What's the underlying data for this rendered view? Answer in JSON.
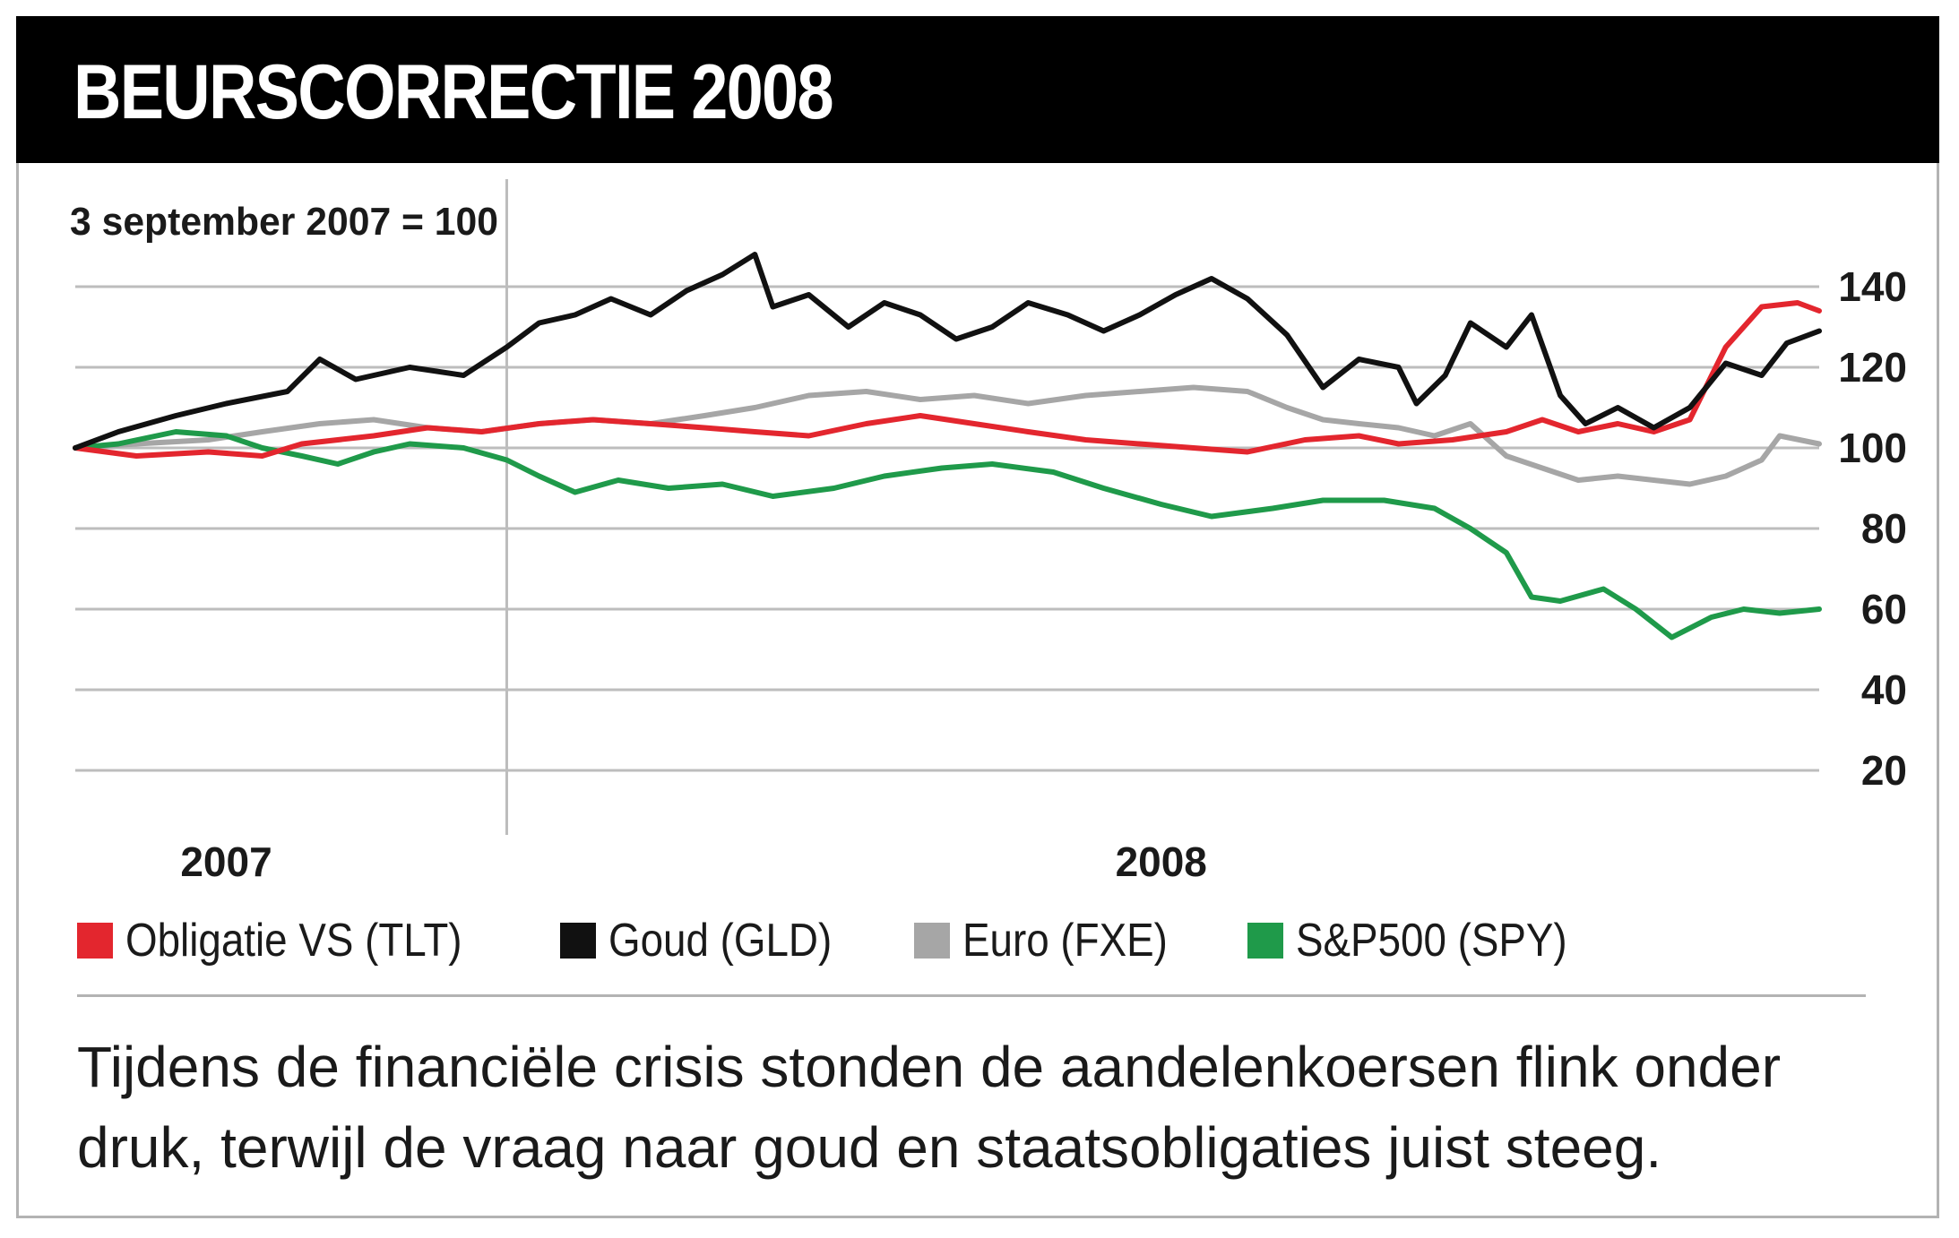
{
  "header": {
    "title": "BEURSCORRECTIE 2008"
  },
  "caption": "Tijdens de financiële crisis stonden de aandelenkoersen flink onder druk, terwijl de vraag naar goud en staatsobligaties juist steeg.",
  "colors": {
    "tlt": "#e3262e",
    "gld": "#111111",
    "fxe": "#a6a6a6",
    "spy": "#1f9a4a",
    "grid": "#bdbdbd"
  },
  "chart_data": {
    "type": "line",
    "index_note": "3 september 2007 = 100",
    "xlim": [
      "2007-09-03",
      "2008-12-31"
    ],
    "ylim": [
      20,
      140
    ],
    "y_ticks": [
      20,
      40,
      60,
      80,
      100,
      120,
      140
    ],
    "y_tick_labels": [
      "20",
      "40",
      "60",
      "80",
      "100",
      "120",
      "140"
    ],
    "year_labels": [
      {
        "label": "2007",
        "x": "2007-10-15"
      },
      {
        "label": "2008",
        "x": "2008-07-01"
      }
    ],
    "year_divider": "2008-01-01",
    "grid": true,
    "legend_position": "bottom",
    "series": [
      {
        "name": "Obligatie VS (TLT)",
        "color_key": "tlt",
        "points": [
          [
            "2007-09-03",
            100
          ],
          [
            "2007-09-20",
            98
          ],
          [
            "2007-10-10",
            99
          ],
          [
            "2007-10-25",
            98
          ],
          [
            "2007-11-05",
            101
          ],
          [
            "2007-11-25",
            103
          ],
          [
            "2007-12-10",
            105
          ],
          [
            "2007-12-25",
            104
          ],
          [
            "2008-01-10",
            106
          ],
          [
            "2008-01-25",
            107
          ],
          [
            "2008-02-10",
            106
          ],
          [
            "2008-02-25",
            105
          ],
          [
            "2008-03-10",
            104
          ],
          [
            "2008-03-25",
            103
          ],
          [
            "2008-04-10",
            106
          ],
          [
            "2008-04-25",
            108
          ],
          [
            "2008-05-10",
            106
          ],
          [
            "2008-05-25",
            104
          ],
          [
            "2008-06-10",
            102
          ],
          [
            "2008-06-25",
            101
          ],
          [
            "2008-07-10",
            100
          ],
          [
            "2008-07-25",
            99
          ],
          [
            "2008-08-10",
            102
          ],
          [
            "2008-08-25",
            103
          ],
          [
            "2008-09-05",
            101
          ],
          [
            "2008-09-20",
            102
          ],
          [
            "2008-10-05",
            104
          ],
          [
            "2008-10-15",
            107
          ],
          [
            "2008-10-25",
            104
          ],
          [
            "2008-11-05",
            106
          ],
          [
            "2008-11-15",
            104
          ],
          [
            "2008-11-25",
            107
          ],
          [
            "2008-12-05",
            125
          ],
          [
            "2008-12-15",
            135
          ],
          [
            "2008-12-25",
            136
          ],
          [
            "2008-12-31",
            134
          ]
        ]
      },
      {
        "name": "Goud (GLD)",
        "color_key": "gld",
        "points": [
          [
            "2007-09-03",
            100
          ],
          [
            "2007-09-15",
            104
          ],
          [
            "2007-10-01",
            108
          ],
          [
            "2007-10-15",
            111
          ],
          [
            "2007-11-01",
            114
          ],
          [
            "2007-11-10",
            122
          ],
          [
            "2007-11-20",
            117
          ],
          [
            "2007-12-05",
            120
          ],
          [
            "2007-12-20",
            118
          ],
          [
            "2008-01-01",
            125
          ],
          [
            "2008-01-10",
            131
          ],
          [
            "2008-01-20",
            133
          ],
          [
            "2008-01-30",
            137
          ],
          [
            "2008-02-10",
            133
          ],
          [
            "2008-02-20",
            139
          ],
          [
            "2008-03-01",
            143
          ],
          [
            "2008-03-10",
            148
          ],
          [
            "2008-03-15",
            135
          ],
          [
            "2008-03-25",
            138
          ],
          [
            "2008-04-05",
            130
          ],
          [
            "2008-04-15",
            136
          ],
          [
            "2008-04-25",
            133
          ],
          [
            "2008-05-05",
            127
          ],
          [
            "2008-05-15",
            130
          ],
          [
            "2008-05-25",
            136
          ],
          [
            "2008-06-05",
            133
          ],
          [
            "2008-06-15",
            129
          ],
          [
            "2008-06-25",
            133
          ],
          [
            "2008-07-05",
            138
          ],
          [
            "2008-07-15",
            142
          ],
          [
            "2008-07-25",
            137
          ],
          [
            "2008-08-05",
            128
          ],
          [
            "2008-08-15",
            115
          ],
          [
            "2008-08-25",
            122
          ],
          [
            "2008-09-05",
            120
          ],
          [
            "2008-09-10",
            111
          ],
          [
            "2008-09-18",
            118
          ],
          [
            "2008-09-25",
            131
          ],
          [
            "2008-10-05",
            125
          ],
          [
            "2008-10-12",
            133
          ],
          [
            "2008-10-20",
            113
          ],
          [
            "2008-10-27",
            106
          ],
          [
            "2008-11-05",
            110
          ],
          [
            "2008-11-15",
            105
          ],
          [
            "2008-11-25",
            110
          ],
          [
            "2008-12-05",
            121
          ],
          [
            "2008-12-15",
            118
          ],
          [
            "2008-12-22",
            126
          ],
          [
            "2008-12-31",
            129
          ]
        ]
      },
      {
        "name": "Euro (FXE)",
        "color_key": "fxe",
        "points": [
          [
            "2007-09-03",
            100
          ],
          [
            "2007-09-20",
            101
          ],
          [
            "2007-10-10",
            102
          ],
          [
            "2007-10-25",
            104
          ],
          [
            "2007-11-10",
            106
          ],
          [
            "2007-11-25",
            107
          ],
          [
            "2007-12-10",
            105
          ],
          [
            "2007-12-25",
            104
          ],
          [
            "2008-01-10",
            106
          ],
          [
            "2008-01-25",
            107
          ],
          [
            "2008-02-10",
            106
          ],
          [
            "2008-02-25",
            108
          ],
          [
            "2008-03-10",
            110
          ],
          [
            "2008-03-25",
            113
          ],
          [
            "2008-04-10",
            114
          ],
          [
            "2008-04-25",
            112
          ],
          [
            "2008-05-10",
            113
          ],
          [
            "2008-05-25",
            111
          ],
          [
            "2008-06-10",
            113
          ],
          [
            "2008-06-25",
            114
          ],
          [
            "2008-07-10",
            115
          ],
          [
            "2008-07-25",
            114
          ],
          [
            "2008-08-05",
            110
          ],
          [
            "2008-08-15",
            107
          ],
          [
            "2008-08-25",
            106
          ],
          [
            "2008-09-05",
            105
          ],
          [
            "2008-09-15",
            103
          ],
          [
            "2008-09-25",
            106
          ],
          [
            "2008-10-05",
            98
          ],
          [
            "2008-10-15",
            95
          ],
          [
            "2008-10-25",
            92
          ],
          [
            "2008-11-05",
            93
          ],
          [
            "2008-11-15",
            92
          ],
          [
            "2008-11-25",
            91
          ],
          [
            "2008-12-05",
            93
          ],
          [
            "2008-12-15",
            97
          ],
          [
            "2008-12-20",
            103
          ],
          [
            "2008-12-31",
            101
          ]
        ]
      },
      {
        "name": "S&P500 (SPY)",
        "color_key": "spy",
        "points": [
          [
            "2007-09-03",
            100
          ],
          [
            "2007-09-15",
            101
          ],
          [
            "2007-10-01",
            104
          ],
          [
            "2007-10-15",
            103
          ],
          [
            "2007-10-25",
            100
          ],
          [
            "2007-11-05",
            98
          ],
          [
            "2007-11-15",
            96
          ],
          [
            "2007-11-25",
            99
          ],
          [
            "2007-12-05",
            101
          ],
          [
            "2007-12-20",
            100
          ],
          [
            "2008-01-01",
            97
          ],
          [
            "2008-01-10",
            93
          ],
          [
            "2008-01-20",
            89
          ],
          [
            "2008-02-01",
            92
          ],
          [
            "2008-02-15",
            90
          ],
          [
            "2008-03-01",
            91
          ],
          [
            "2008-03-15",
            88
          ],
          [
            "2008-04-01",
            90
          ],
          [
            "2008-04-15",
            93
          ],
          [
            "2008-05-01",
            95
          ],
          [
            "2008-05-15",
            96
          ],
          [
            "2008-06-01",
            94
          ],
          [
            "2008-06-15",
            90
          ],
          [
            "2008-07-01",
            86
          ],
          [
            "2008-07-15",
            83
          ],
          [
            "2008-08-01",
            85
          ],
          [
            "2008-08-15",
            87
          ],
          [
            "2008-09-01",
            87
          ],
          [
            "2008-09-15",
            85
          ],
          [
            "2008-09-25",
            80
          ],
          [
            "2008-10-05",
            74
          ],
          [
            "2008-10-12",
            63
          ],
          [
            "2008-10-20",
            62
          ],
          [
            "2008-11-01",
            65
          ],
          [
            "2008-11-10",
            60
          ],
          [
            "2008-11-20",
            53
          ],
          [
            "2008-12-01",
            58
          ],
          [
            "2008-12-10",
            60
          ],
          [
            "2008-12-20",
            59
          ],
          [
            "2008-12-31",
            60
          ]
        ]
      }
    ]
  }
}
